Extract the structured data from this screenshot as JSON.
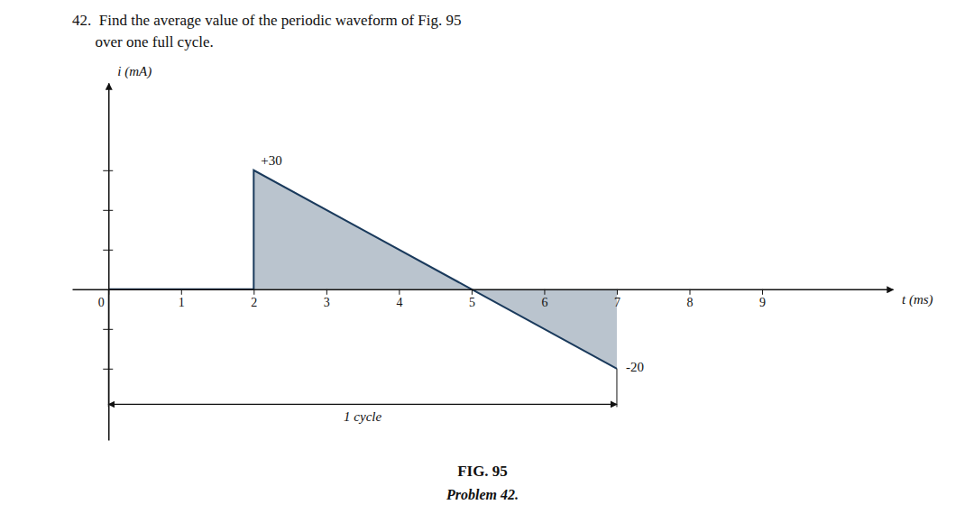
{
  "chart_data": {
    "type": "area",
    "title": [
      "42.  Find the average value of the periodic waveform of Fig. 95",
      "      over one full cycle."
    ],
    "x_label": "t (ms)",
    "y_label": "i (mA)",
    "x": [
      0,
      2,
      2,
      7
    ],
    "values": [
      0,
      0,
      30,
      -20
    ],
    "color": "#1a3a5c",
    "xlim": [
      -0.5,
      10.8
    ],
    "ylim": [
      -38,
      52
    ],
    "xticks": [
      0,
      1,
      2,
      3,
      4,
      5,
      6,
      7,
      8,
      9
    ],
    "yticks": [
      -20,
      -10,
      10,
      20,
      30
    ],
    "tick_labels": "x",
    "grid": false,
    "annotations": [
      {
        "text": "+30",
        "x": 2,
        "y": 30
      },
      {
        "text": "-20",
        "x": 7,
        "y": -20
      },
      {
        "text": "1 cycle",
        "x": [
          0,
          7
        ]
      },
      {
        "text": "FIG. 95"
      },
      {
        "text": "Problem 42."
      }
    ]
  }
}
